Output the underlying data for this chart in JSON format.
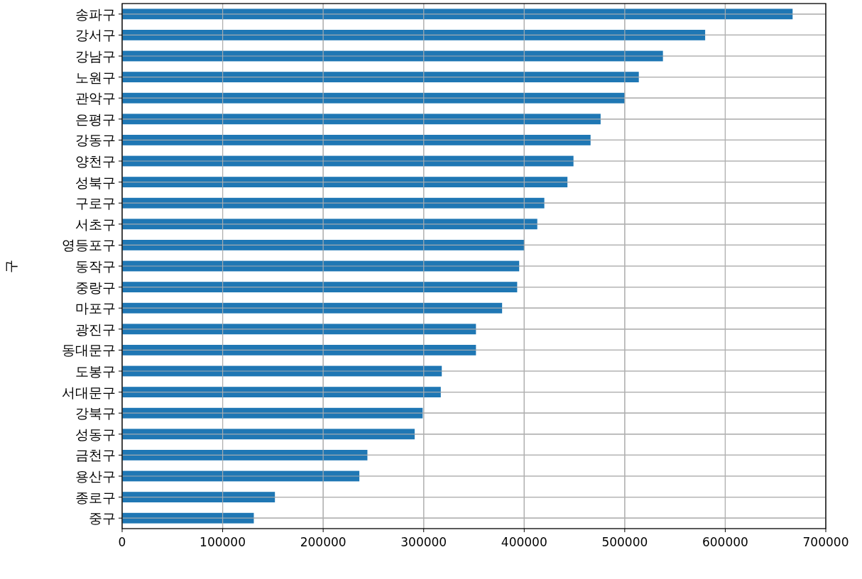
{
  "chart_data": {
    "type": "bar",
    "orientation": "horizontal",
    "ylabel": "구",
    "categories": [
      "송파구",
      "강서구",
      "강남구",
      "노원구",
      "관악구",
      "은평구",
      "강동구",
      "양천구",
      "성북구",
      "구로구",
      "서초구",
      "영등포구",
      "동작구",
      "중랑구",
      "마포구",
      "광진구",
      "동대문구",
      "도봉구",
      "서대문구",
      "강북구",
      "성동구",
      "금천구",
      "용산구",
      "종로구",
      "중구"
    ],
    "values": [
      667000,
      580000,
      538000,
      514000,
      500000,
      476000,
      466000,
      449000,
      443000,
      420000,
      413000,
      400000,
      395000,
      393000,
      378000,
      352000,
      352000,
      318000,
      317000,
      299000,
      291000,
      244000,
      236000,
      152000,
      131000
    ],
    "color": "#1f77b4",
    "xlim": [
      0,
      700000
    ],
    "xticks": [
      0,
      100000,
      200000,
      300000,
      400000,
      500000,
      600000,
      700000
    ],
    "grid": true
  }
}
